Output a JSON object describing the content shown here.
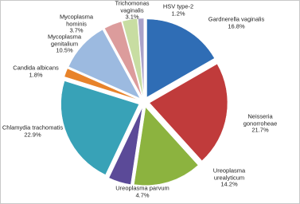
{
  "chart_data": {
    "type": "pie",
    "categories": [
      "Gardnerella vaginalis",
      "Neisseria gonorroheae",
      "Ureoplasma urealyticum",
      "Ureoplasma parvum",
      "Chlamydia trachomatis",
      "Candida albicans",
      "Mycoplasma genitalium",
      "Mycoplasma hominis",
      "Trichomonas vaginalis",
      "HSV type-2"
    ],
    "values": [
      16.8,
      21.7,
      14.2,
      4.7,
      22.9,
      1.8,
      10.5,
      3.7,
      3.1,
      1.2
    ],
    "value_labels": [
      "16.8%",
      "21.7%",
      "14.2%",
      "4.7%",
      "22.9%",
      "1.8%",
      "10.5%",
      "3.7%",
      "3.1%",
      "1.2%"
    ],
    "colors": [
      "#2f6db5",
      "#c03b3b",
      "#8cb33f",
      "#5b4a98",
      "#38a2b7",
      "#e8832a",
      "#9cbae0",
      "#dc9c9c",
      "#c8dda2",
      "#aaa2c9"
    ]
  }
}
